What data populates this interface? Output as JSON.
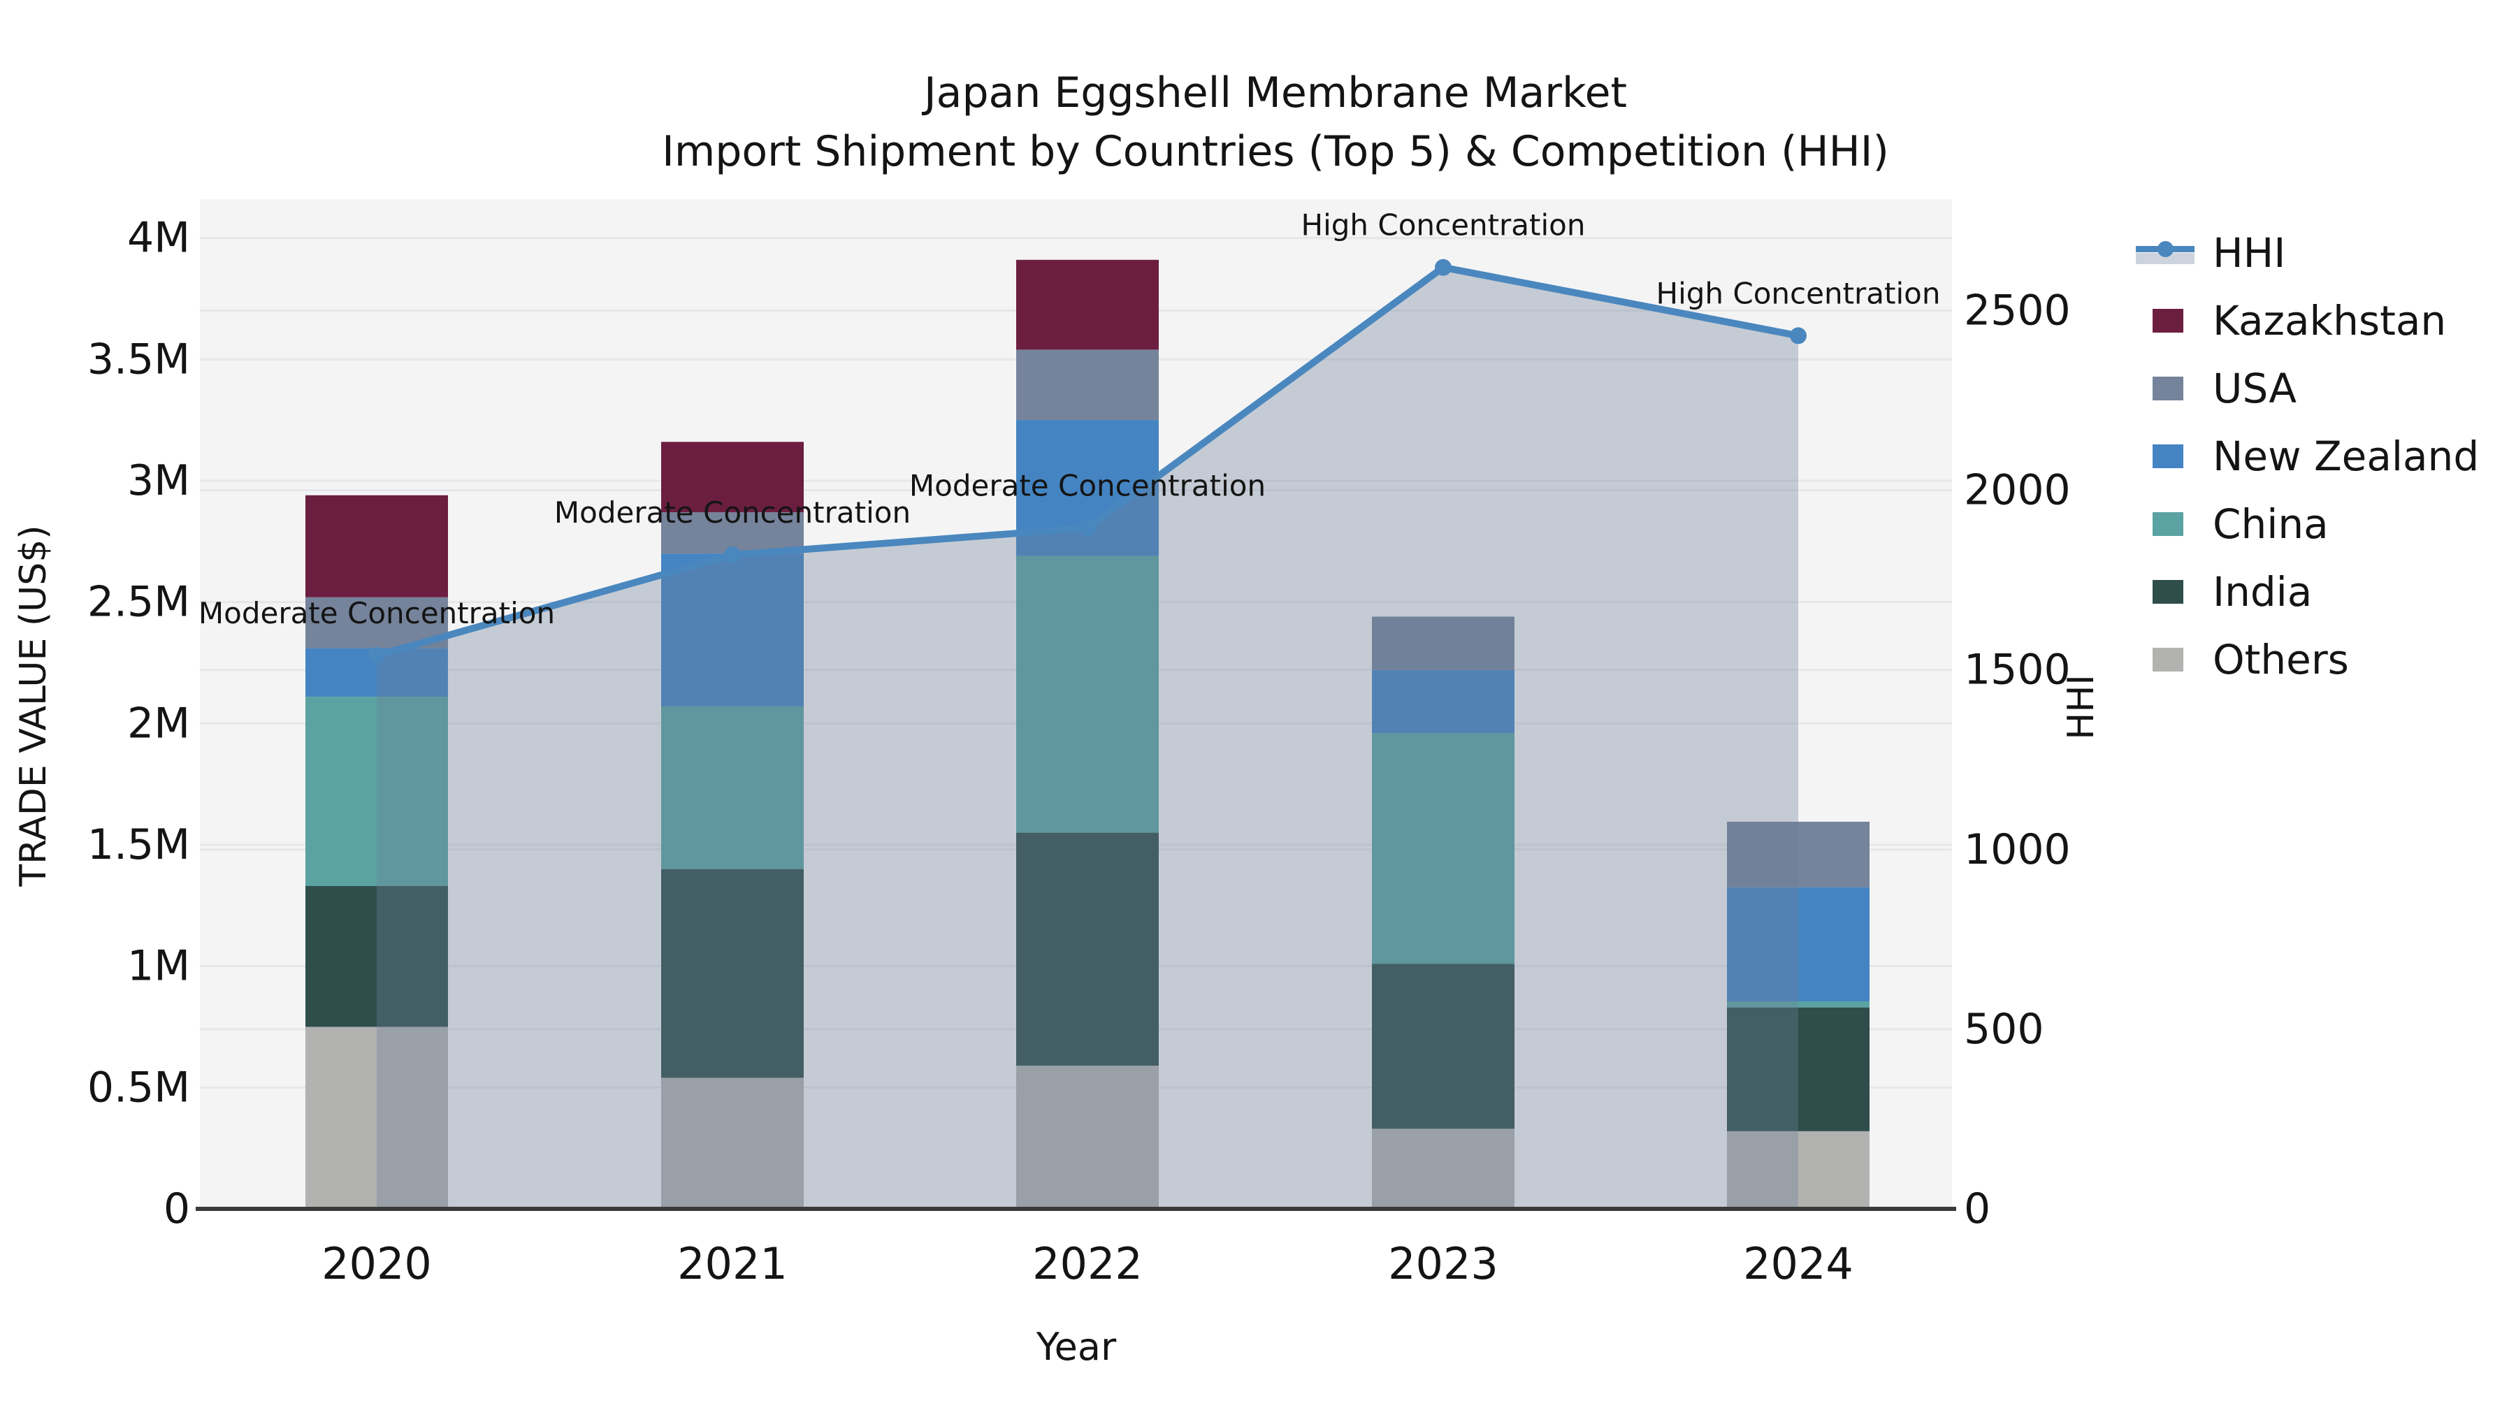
{
  "title": {
    "line1": "Japan Eggshell Membrane Market",
    "line2": "Import Shipment by Countries (Top 5) & Competition (HHI)"
  },
  "legend": {
    "items": [
      {
        "label": "HHI",
        "type": "line",
        "color": "#4A87BE",
        "band_color": "#CCD3DD"
      },
      {
        "label": "Kazakhstan",
        "type": "patch",
        "color": "#6C1E40"
      },
      {
        "label": "USA",
        "type": "patch",
        "color": "#75839B"
      },
      {
        "label": "New Zealand",
        "type": "patch",
        "color": "#4484C2"
      },
      {
        "label": "China",
        "type": "patch",
        "color": "#5AA3A2"
      },
      {
        "label": "India",
        "type": "patch",
        "color": "#2E4D4B"
      },
      {
        "label": "Others",
        "type": "patch",
        "color": "#B2B2B1"
      }
    ]
  },
  "chart_data": {
    "type": "bar",
    "subtype": "stacked-bars-with-line-overlay",
    "title": "Japan Eggshell Membrane Market",
    "subtitle": "Import Shipment by Countries (Top 5) & Competition (HHI)",
    "categories": [
      "2020",
      "2021",
      "2022",
      "2023",
      "2024"
    ],
    "xlabel": "Year",
    "ylabel_left": "TRADE VALUE (US$)",
    "ylabel_right": "HHI",
    "ylim_left": [
      0,
      4160000
    ],
    "ylim_right": [
      0,
      2810
    ],
    "grid": true,
    "legend_position": "right",
    "yticks_left": [
      {
        "value": 0,
        "label": "0"
      },
      {
        "value": 500000,
        "label": "0.5M"
      },
      {
        "value": 1000000,
        "label": "1M"
      },
      {
        "value": 1500000,
        "label": "1.5M"
      },
      {
        "value": 2000000,
        "label": "2M"
      },
      {
        "value": 2500000,
        "label": "2.5M"
      },
      {
        "value": 3000000,
        "label": "3M"
      },
      {
        "value": 3500000,
        "label": "3.5M"
      },
      {
        "value": 4000000,
        "label": "4M"
      }
    ],
    "yticks_right": [
      {
        "value": 0,
        "label": "0"
      },
      {
        "value": 500,
        "label": "500"
      },
      {
        "value": 1000,
        "label": "1000"
      },
      {
        "value": 1500,
        "label": "1500"
      },
      {
        "value": 2000,
        "label": "2000"
      },
      {
        "value": 2500,
        "label": "2500"
      }
    ],
    "series": [
      {
        "name": "Others",
        "color": "#B2B2B1",
        "values": [
          750000,
          540000,
          590000,
          330000,
          320000
        ]
      },
      {
        "name": "India",
        "color": "#2E4D4B",
        "values": [
          580000,
          860000,
          960000,
          680000,
          510000
        ]
      },
      {
        "name": "China",
        "color": "#5AA3A2",
        "values": [
          780000,
          670000,
          1140000,
          950000,
          25000
        ]
      },
      {
        "name": "New Zealand",
        "color": "#4484C2",
        "values": [
          200000,
          630000,
          560000,
          260000,
          470000
        ]
      },
      {
        "name": "USA",
        "color": "#75839B",
        "values": [
          210000,
          170000,
          290000,
          220000,
          270000
        ]
      },
      {
        "name": "Kazakhstan",
        "color": "#6C1E40",
        "values": [
          420000,
          290000,
          370000,
          0,
          0
        ]
      }
    ],
    "line_series": {
      "name": "HHI",
      "color": "#4A87BE",
      "fill_color": "#6C7F99",
      "fill_opacity": 0.35,
      "values": [
        1540,
        1820,
        1895,
        2620,
        2430
      ]
    },
    "annotations": [
      {
        "category": "2020",
        "text": "Moderate Concentration"
      },
      {
        "category": "2021",
        "text": "Moderate Concentration"
      },
      {
        "category": "2022",
        "text": "Moderate Concentration"
      },
      {
        "category": "2023",
        "text": "High Concentration"
      },
      {
        "category": "2024",
        "text": "High Concentration"
      }
    ],
    "style": {
      "plot_bg": "#F4F4F5",
      "gridline": "#E6E7EA",
      "spine": "#3A3A3A",
      "text": "#141414"
    }
  }
}
